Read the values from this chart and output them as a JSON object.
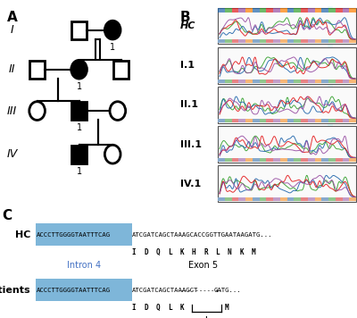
{
  "panel_A_label": "A",
  "panel_B_label": "B",
  "panel_C_label": "C",
  "generations": [
    "I",
    "II",
    "III",
    "IV"
  ],
  "chromatogram_labels": [
    "HC",
    "I.1",
    "II.1",
    "III.1",
    "IV.1"
  ],
  "blue_color": "#7EB6D9",
  "blue_text_color": "#4472C4",
  "background": "#ffffff",
  "hc_seq_blue": "ACCCTTGGGGTAATTTCAG",
  "hc_seq_black": "ATCGATCAGCTAAAGCACCGGTTGAATAAGATG...",
  "hc_amino": [
    "I",
    "D",
    "Q",
    "L",
    "K",
    "H",
    "R",
    "L",
    "N",
    "K",
    "M"
  ],
  "pat_seq_blue": "ACCCTTGGGGTAATTTCAG",
  "pat_seq_black1": "ATCGATCAGCTAAAGCT",
  "pat_seq_dashes": "-----------",
  "pat_seq_black2": "GATG...",
  "pat_amino": [
    "I",
    "D",
    "Q",
    "L",
    "K"
  ],
  "intron_label": "Intron 4",
  "exon_label": "Exon 5"
}
